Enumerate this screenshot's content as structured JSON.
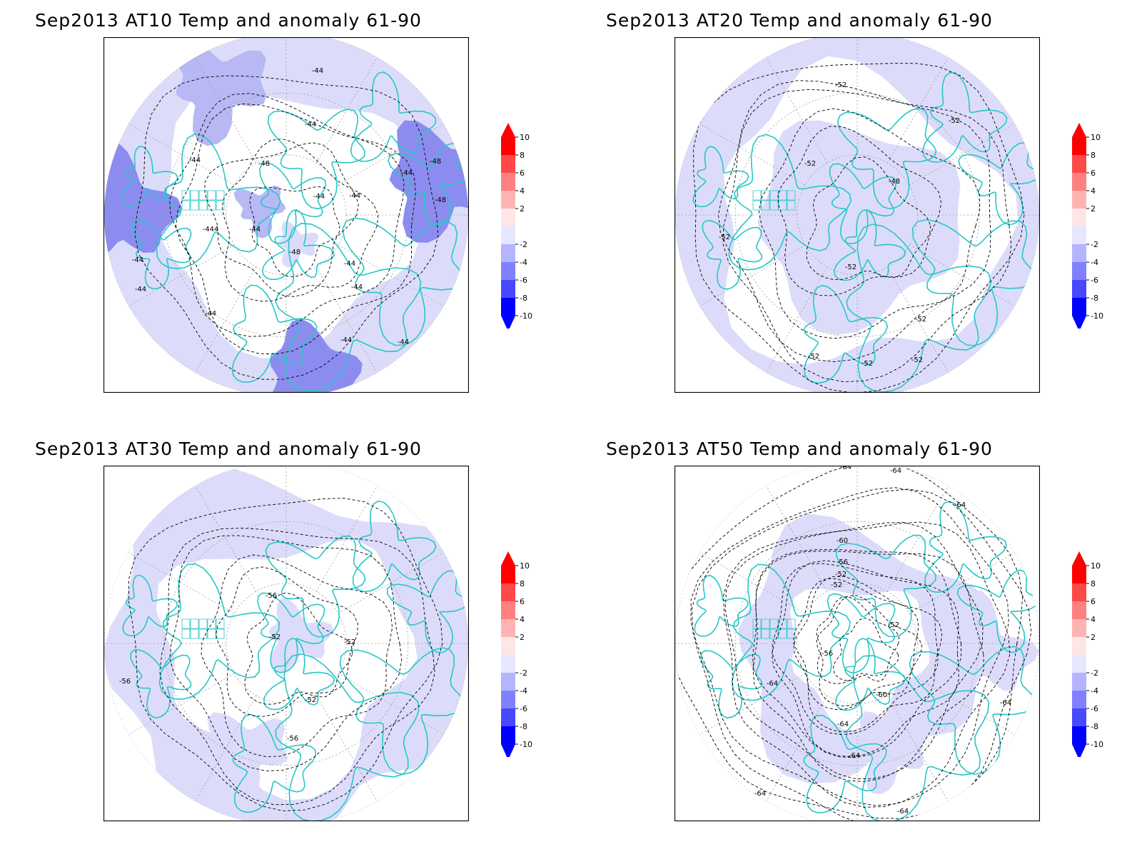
{
  "panels": [
    {
      "title": "Sep2013 AT10 Temp and anomaly 61-90",
      "contours": [
        "-44",
        "-44",
        "-44",
        "-44",
        "-44",
        "-44",
        "-44",
        "-44",
        "-444",
        "-44",
        "-44",
        "-44",
        "-48",
        "-48",
        "-48",
        "-48",
        "-48",
        "-48",
        "-44",
        "-44",
        "-44"
      ]
    },
    {
      "title": "Sep2013 AT20 Temp and anomaly 61-90",
      "contours": [
        "-52",
        "-52",
        "-52",
        "-48",
        "-52",
        "-52",
        "-52",
        "-52",
        "-52",
        "-52"
      ]
    },
    {
      "title": "Sep2013 AT30 Temp and anomaly 61-90",
      "contours": [
        "-56",
        "-52",
        "-52",
        "-52",
        "-56",
        "-56"
      ]
    },
    {
      "title": "Sep2013 AT50 Temp and anomaly 61-90",
      "contours": [
        "-64",
        "-64",
        "-64",
        "-60",
        "-56",
        "-52",
        "-52",
        "-52",
        "-56",
        "-60",
        "-64",
        "-64",
        "-64",
        "-64",
        "-64",
        "-64",
        "-64",
        "-64"
      ]
    }
  ],
  "colorbar": {
    "labels": [
      "10",
      "8",
      "6",
      "4",
      "2",
      "-2",
      "-4",
      "-6",
      "-8",
      "-10"
    ],
    "colors": [
      "#ff0000",
      "#ff4848",
      "#ff8080",
      "#ffb4b4",
      "#ffe6e6",
      "#e6e6ff",
      "#b4b4ff",
      "#8080ff",
      "#4848ff",
      "#0000ff"
    ]
  },
  "colors": {
    "coast": "#26c7c7",
    "anomaly_-2": "#dcdcfa",
    "anomaly_-4": "#b8b8f4",
    "anomaly_-6": "#8c8cf0",
    "contour": "#000000"
  }
}
